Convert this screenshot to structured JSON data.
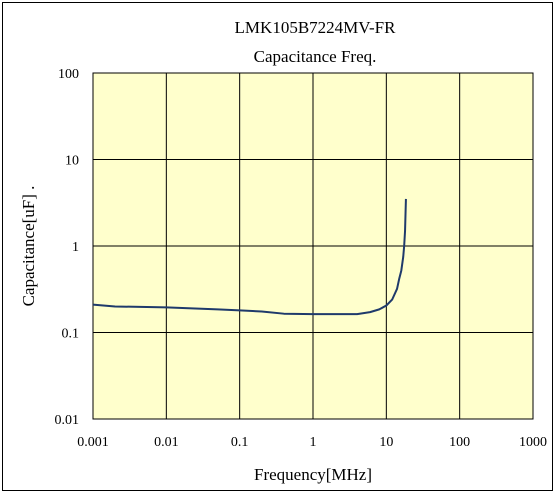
{
  "chart_data": {
    "type": "line",
    "title": "LMK105B7224MV-FR",
    "subtitle": "Capacitance Freq.",
    "xlabel": "Frequency[MHz]",
    "ylabel": "Capacitance[uF] .",
    "x_scale": "log",
    "y_scale": "log",
    "xlim": [
      0.001,
      1000
    ],
    "ylim": [
      0.01,
      100
    ],
    "x_ticks": [
      0.001,
      0.01,
      0.1,
      1,
      10,
      100,
      1000
    ],
    "x_tick_labels": [
      "0.001",
      "0.01",
      "0.1",
      "1",
      "10",
      "100",
      "1000"
    ],
    "y_ticks": [
      0.01,
      0.1,
      1,
      10,
      100
    ],
    "y_tick_labels": [
      "0.01",
      "0.1",
      "1",
      "10",
      "100"
    ],
    "grid": true,
    "plot_background": "#ffffcc",
    "series": [
      {
        "color": "#1f3a6b",
        "x": [
          0.001,
          0.002,
          0.01,
          0.05,
          0.1,
          0.2,
          0.4,
          1,
          2,
          4,
          6,
          8,
          10,
          12,
          14,
          15,
          16,
          17,
          17.5,
          18,
          18.5
        ],
        "y": [
          0.21,
          0.2,
          0.195,
          0.185,
          0.18,
          0.175,
          0.165,
          0.163,
          0.163,
          0.163,
          0.172,
          0.185,
          0.205,
          0.24,
          0.32,
          0.42,
          0.52,
          0.75,
          1.0,
          1.5,
          3.5
        ]
      }
    ]
  }
}
